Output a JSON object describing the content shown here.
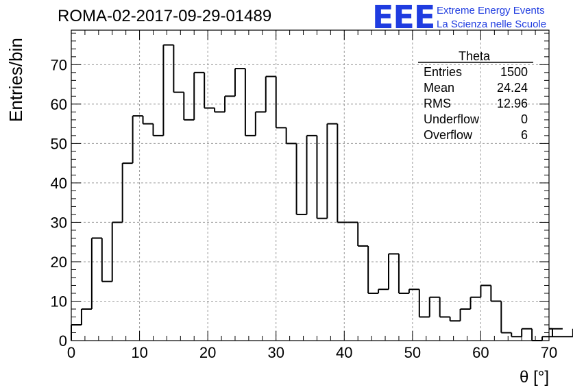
{
  "run_label": "ROMA-02-2017-09-29-01489",
  "logo": {
    "mark": "EEE",
    "line1": "Extreme Energy Events",
    "line2": "La Scienza nelle Scuole",
    "color": "#1f3ce0"
  },
  "stats_box": {
    "title": "Theta",
    "rows": [
      {
        "label": "Entries",
        "value": "1500"
      },
      {
        "label": "Mean",
        "value": "24.24"
      },
      {
        "label": "RMS",
        "value": "12.96"
      },
      {
        "label": "Underflow",
        "value": "0"
      },
      {
        "label": "Overflow",
        "value": "6"
      }
    ]
  },
  "chart_data": {
    "type": "bar",
    "style": "step-histogram",
    "title": "ROMA-02-2017-09-29-01489",
    "xlabel": "θ [°]",
    "ylabel": "Entries/bin",
    "xlim": [
      0,
      70
    ],
    "ylim": [
      0,
      78.75
    ],
    "bin_width": 1.5,
    "x_ticks": [
      0,
      10,
      20,
      30,
      40,
      50,
      60,
      70
    ],
    "y_ticks": [
      0,
      10,
      20,
      30,
      40,
      50,
      60,
      70
    ],
    "grid": true,
    "series": [
      {
        "values": [
          4,
          8,
          26,
          15,
          30,
          45,
          57,
          55,
          52,
          75,
          63,
          56,
          68,
          59,
          58,
          62,
          69,
          52,
          58,
          67,
          54,
          50,
          32,
          52,
          31,
          55,
          30,
          30,
          24,
          12,
          13,
          22,
          12,
          13,
          6,
          11,
          6,
          5,
          8,
          11,
          14,
          10,
          2,
          1,
          3,
          0,
          1,
          3,
          3,
          1
        ]
      }
    ],
    "line_color": "#000000"
  }
}
